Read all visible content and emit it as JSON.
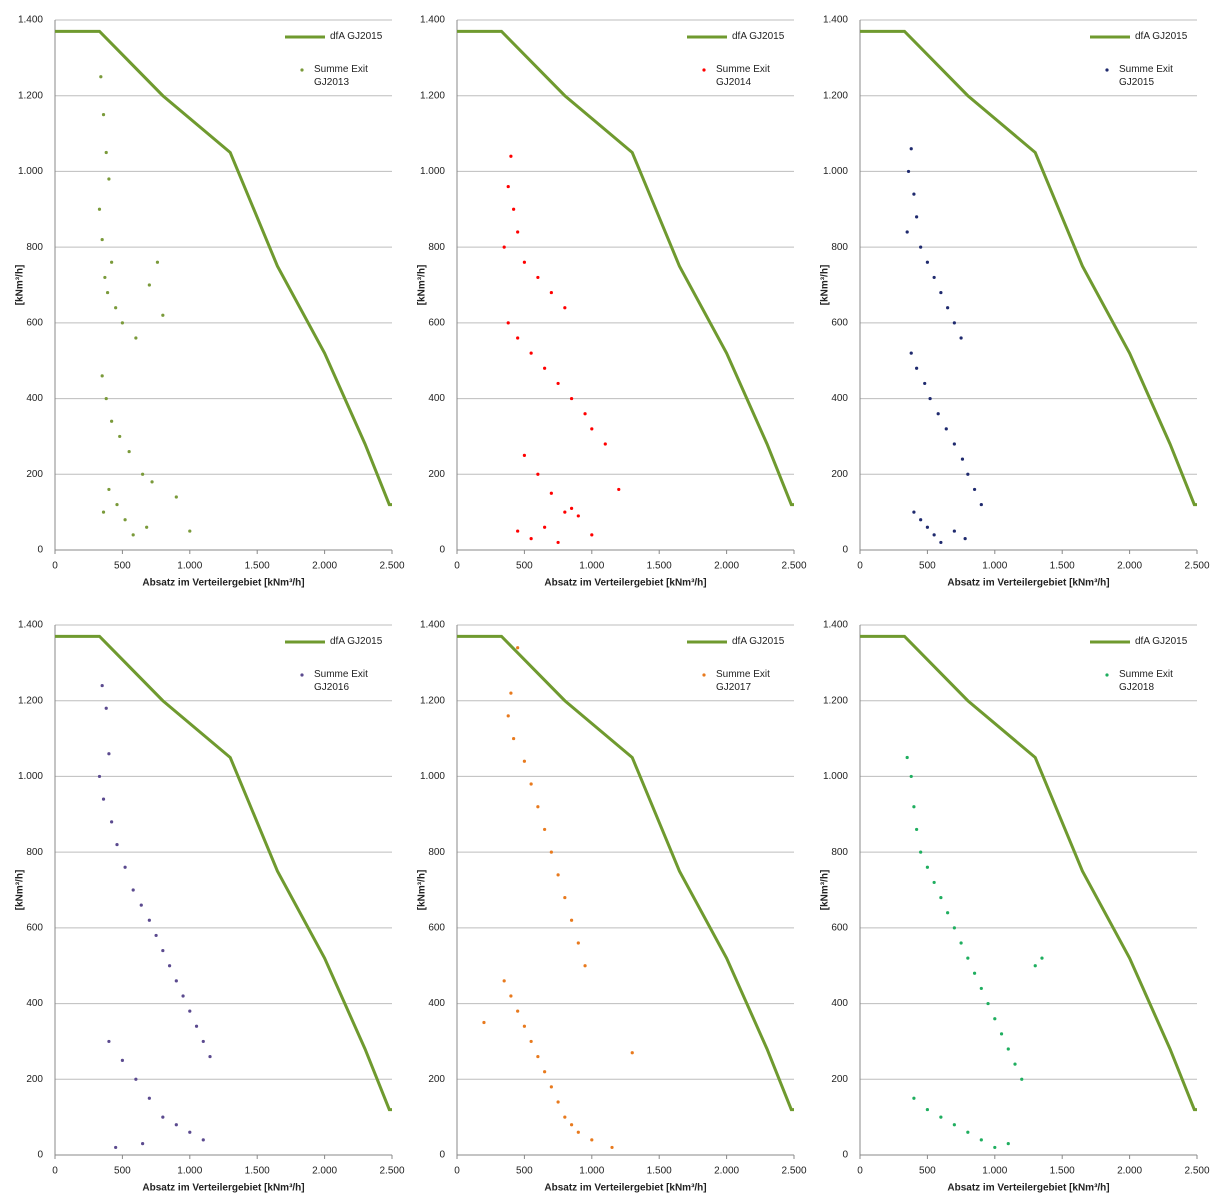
{
  "chart_data": [
    {
      "type": "scatter",
      "xlabel": "Absatz im Verteilergebiet [kNm³/h]",
      "ylabel": "[kNm³/h]",
      "xlim": [
        0,
        2500
      ],
      "ylim": [
        0,
        1400
      ],
      "grid": true,
      "xticks": [
        0,
        500,
        {
          "value": 1000,
          "label": "1.000"
        },
        {
          "value": 1500,
          "label": "1.500"
        },
        {
          "value": 2000,
          "label": "2.000"
        },
        {
          "value": 2500,
          "label": "2.500"
        }
      ],
      "yticks": [
        0,
        200,
        400,
        600,
        800,
        {
          "value": 1000,
          "label": "1.000"
        },
        {
          "value": 1200,
          "label": "1.200"
        },
        {
          "value": 1400,
          "label": "1.400"
        }
      ],
      "series": [
        {
          "name": "dfA GJ2015",
          "type": "line",
          "color": "#6f9a2f",
          "x": [
            0,
            330,
            800,
            1300,
            1650,
            2000,
            2300,
            2480,
            2500
          ],
          "values": [
            1370,
            1370,
            1200,
            1050,
            750,
            520,
            280,
            120,
            120
          ]
        },
        {
          "name": "Summe Exit GJ2013",
          "type": "scatter",
          "color": "#7a9a3a",
          "x": [
            340,
            360,
            380,
            400,
            330,
            350,
            420,
            370,
            390,
            450,
            500,
            600,
            700,
            760,
            800,
            350,
            380,
            420,
            480,
            550,
            650,
            720,
            900,
            1000,
            360,
            400,
            460,
            520,
            580,
            680
          ],
          "values": [
            1250,
            1150,
            1050,
            980,
            900,
            820,
            760,
            720,
            680,
            640,
            600,
            560,
            700,
            760,
            620,
            460,
            400,
            340,
            300,
            260,
            200,
            180,
            140,
            50,
            100,
            160,
            120,
            80,
            40,
            60
          ]
        }
      ]
    },
    {
      "type": "scatter",
      "xlabel": "Absatz im Verteilergebiet [kNm³/h]",
      "ylabel": "[kNm³/h]",
      "xlim": [
        0,
        2500
      ],
      "ylim": [
        0,
        1400
      ],
      "grid": true,
      "xticks": [
        0,
        500,
        {
          "value": 1000,
          "label": "1.000"
        },
        {
          "value": 1500,
          "label": "1.500"
        },
        {
          "value": 2000,
          "label": "2.000"
        },
        {
          "value": 2500,
          "label": "2.500"
        }
      ],
      "yticks": [
        0,
        200,
        400,
        600,
        800,
        {
          "value": 1000,
          "label": "1.000"
        },
        {
          "value": 1200,
          "label": "1.200"
        },
        {
          "value": 1400,
          "label": "1.400"
        }
      ],
      "series": [
        {
          "name": "dfA GJ2015",
          "type": "line",
          "color": "#6f9a2f",
          "x": [
            0,
            330,
            800,
            1300,
            1650,
            2000,
            2300,
            2480,
            2500
          ],
          "values": [
            1370,
            1370,
            1200,
            1050,
            750,
            520,
            280,
            120,
            120
          ]
        },
        {
          "name": "Summe Exit GJ2014",
          "type": "scatter",
          "color": "#ff0000",
          "x": [
            400,
            380,
            420,
            450,
            350,
            500,
            600,
            700,
            800,
            380,
            450,
            550,
            650,
            750,
            850,
            950,
            1000,
            1100,
            1200,
            500,
            600,
            700,
            800,
            900,
            450,
            550,
            650,
            750,
            850,
            1000
          ],
          "values": [
            1040,
            960,
            900,
            840,
            800,
            760,
            720,
            680,
            640,
            600,
            560,
            520,
            480,
            440,
            400,
            360,
            320,
            280,
            160,
            250,
            200,
            150,
            100,
            90,
            50,
            30,
            60,
            20,
            110,
            40
          ]
        }
      ]
    },
    {
      "type": "scatter",
      "xlabel": "Absatz im Verteilergebiet [kNm³/h]",
      "ylabel": "[kNm³/h]",
      "xlim": [
        0,
        2500
      ],
      "ylim": [
        0,
        1400
      ],
      "grid": true,
      "xticks": [
        0,
        500,
        {
          "value": 1000,
          "label": "1.000"
        },
        {
          "value": 1500,
          "label": "1.500"
        },
        {
          "value": 2000,
          "label": "2.000"
        },
        {
          "value": 2500,
          "label": "2.500"
        }
      ],
      "yticks": [
        0,
        200,
        400,
        600,
        800,
        {
          "value": 1000,
          "label": "1.000"
        },
        {
          "value": 1200,
          "label": "1.200"
        },
        {
          "value": 1400,
          "label": "1.400"
        }
      ],
      "series": [
        {
          "name": "dfA GJ2015",
          "type": "line",
          "color": "#6f9a2f",
          "x": [
            0,
            330,
            800,
            1300,
            1650,
            2000,
            2300,
            2480,
            2500
          ],
          "values": [
            1370,
            1370,
            1200,
            1050,
            750,
            520,
            280,
            120,
            120
          ]
        },
        {
          "name": "Summe Exit GJ2015",
          "type": "scatter",
          "color": "#1f2a6e",
          "x": [
            380,
            360,
            400,
            420,
            350,
            450,
            500,
            550,
            600,
            650,
            700,
            750,
            380,
            420,
            480,
            520,
            580,
            640,
            700,
            760,
            800,
            850,
            900,
            400,
            450,
            500,
            550,
            600,
            700,
            780
          ],
          "values": [
            1060,
            1000,
            940,
            880,
            840,
            800,
            760,
            720,
            680,
            640,
            600,
            560,
            520,
            480,
            440,
            400,
            360,
            320,
            280,
            240,
            200,
            160,
            120,
            100,
            80,
            60,
            40,
            20,
            50,
            30
          ]
        }
      ]
    },
    {
      "type": "scatter",
      "xlabel": "Absatz im Verteilergebiet [kNm³/h]",
      "ylabel": "[kNm³/h]",
      "xlim": [
        0,
        2500
      ],
      "ylim": [
        0,
        1400
      ],
      "grid": true,
      "xticks": [
        0,
        500,
        {
          "value": 1000,
          "label": "1.000"
        },
        {
          "value": 1500,
          "label": "1.500"
        },
        {
          "value": 2000,
          "label": "2.000"
        },
        {
          "value": 2500,
          "label": "2.500"
        }
      ],
      "yticks": [
        0,
        200,
        400,
        600,
        800,
        {
          "value": 1000,
          "label": "1.000"
        },
        {
          "value": 1200,
          "label": "1.200"
        },
        {
          "value": 1400,
          "label": "1.400"
        }
      ],
      "series": [
        {
          "name": "dfA GJ2015",
          "type": "line",
          "color": "#6f9a2f",
          "x": [
            0,
            330,
            800,
            1300,
            1650,
            2000,
            2300,
            2480,
            2500
          ],
          "values": [
            1370,
            1370,
            1200,
            1050,
            750,
            520,
            280,
            120,
            120
          ]
        },
        {
          "name": "Summe Exit GJ2016",
          "type": "scatter",
          "color": "#5b4a8f",
          "x": [
            350,
            380,
            400,
            330,
            360,
            420,
            460,
            520,
            580,
            640,
            700,
            750,
            800,
            850,
            900,
            950,
            1000,
            1050,
            1100,
            1150,
            400,
            500,
            600,
            700,
            800,
            900,
            1000,
            1100,
            450,
            650
          ],
          "values": [
            1240,
            1180,
            1060,
            1000,
            940,
            880,
            820,
            760,
            700,
            660,
            620,
            580,
            540,
            500,
            460,
            420,
            380,
            340,
            300,
            260,
            300,
            250,
            200,
            150,
            100,
            80,
            60,
            40,
            20,
            30
          ]
        }
      ]
    },
    {
      "type": "scatter",
      "xlabel": "Absatz im Verteilergebiet [kNm³/h]",
      "ylabel": "[kNm³/h]",
      "xlim": [
        0,
        2500
      ],
      "ylim": [
        0,
        1400
      ],
      "grid": true,
      "xticks": [
        0,
        500,
        {
          "value": 1000,
          "label": "1.000"
        },
        {
          "value": 1500,
          "label": "1.500"
        },
        {
          "value": 2000,
          "label": "2.000"
        },
        {
          "value": 2500,
          "label": "2.500"
        }
      ],
      "yticks": [
        0,
        200,
        400,
        600,
        800,
        {
          "value": 1000,
          "label": "1.000"
        },
        {
          "value": 1200,
          "label": "1.200"
        },
        {
          "value": 1400,
          "label": "1.400"
        }
      ],
      "series": [
        {
          "name": "dfA GJ2015",
          "type": "line",
          "color": "#6f9a2f",
          "x": [
            0,
            330,
            800,
            1300,
            1650,
            2000,
            2300,
            2480,
            2500
          ],
          "values": [
            1370,
            1370,
            1200,
            1050,
            750,
            520,
            280,
            120,
            120
          ]
        },
        {
          "name": "Summe Exit GJ2017",
          "type": "scatter",
          "color": "#e87a1e",
          "x": [
            450,
            400,
            380,
            420,
            500,
            550,
            600,
            650,
            700,
            750,
            800,
            850,
            900,
            950,
            350,
            400,
            450,
            500,
            550,
            600,
            650,
            700,
            750,
            800,
            850,
            900,
            1000,
            1150,
            1300,
            200
          ],
          "values": [
            1340,
            1220,
            1160,
            1100,
            1040,
            980,
            920,
            860,
            800,
            740,
            680,
            620,
            560,
            500,
            460,
            420,
            380,
            340,
            300,
            260,
            220,
            180,
            140,
            100,
            80,
            60,
            40,
            20,
            270,
            350
          ]
        }
      ]
    },
    {
      "type": "scatter",
      "xlabel": "Absatz im Verteilergebiet [kNm³/h]",
      "ylabel": "[kNm³/h]",
      "xlim": [
        0,
        2500
      ],
      "ylim": [
        0,
        1400
      ],
      "grid": true,
      "xticks": [
        0,
        500,
        {
          "value": 1000,
          "label": "1.000"
        },
        {
          "value": 1500,
          "label": "1.500"
        },
        {
          "value": 2000,
          "label": "2.000"
        },
        {
          "value": 2500,
          "label": "2.500"
        }
      ],
      "yticks": [
        0,
        200,
        400,
        600,
        800,
        {
          "value": 1000,
          "label": "1.000"
        },
        {
          "value": 1200,
          "label": "1.200"
        },
        {
          "value": 1400,
          "label": "1.400"
        }
      ],
      "series": [
        {
          "name": "dfA GJ2015",
          "type": "line",
          "color": "#6f9a2f",
          "x": [
            0,
            330,
            800,
            1300,
            1650,
            2000,
            2300,
            2480,
            2500
          ],
          "values": [
            1370,
            1370,
            1200,
            1050,
            750,
            520,
            280,
            120,
            120
          ]
        },
        {
          "name": "Summe Exit GJ2018",
          "type": "scatter",
          "color": "#1fae5f",
          "x": [
            350,
            380,
            400,
            420,
            450,
            500,
            550,
            600,
            650,
            700,
            750,
            800,
            850,
            900,
            950,
            1000,
            1050,
            1100,
            1150,
            1200,
            1300,
            1350,
            400,
            500,
            600,
            700,
            800,
            900,
            1000,
            1100
          ],
          "values": [
            1050,
            1000,
            920,
            860,
            800,
            760,
            720,
            680,
            640,
            600,
            560,
            520,
            480,
            440,
            400,
            360,
            320,
            280,
            240,
            200,
            500,
            520,
            150,
            120,
            100,
            80,
            60,
            40,
            20,
            30
          ]
        }
      ]
    }
  ]
}
